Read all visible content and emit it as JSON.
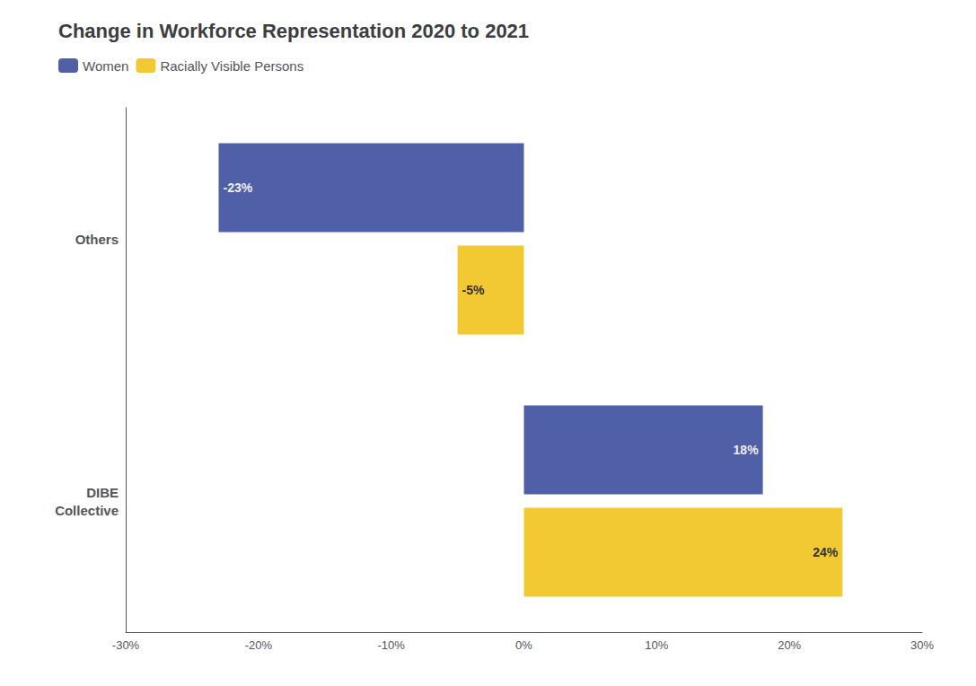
{
  "chart_data": {
    "type": "bar",
    "orientation": "horizontal",
    "title": "Change in Workforce Representation 2020 to 2021",
    "categories": [
      "DIBE\nCollective",
      "Others"
    ],
    "series": [
      {
        "name": "Women",
        "color": "#4f5fa8",
        "values": [
          18,
          -23
        ],
        "value_labels": [
          "18%",
          "-23%"
        ]
      },
      {
        "name": "Racially Visible Persons",
        "color": "#f2c933",
        "values": [
          24,
          -5
        ],
        "value_labels": [
          "24%",
          "-5%"
        ]
      }
    ],
    "xlim": [
      -30,
      30
    ],
    "xticks": [
      {
        "value": -30,
        "label": "-30%"
      },
      {
        "value": -20,
        "label": "-20%"
      },
      {
        "value": -10,
        "label": "-10%"
      },
      {
        "value": 0,
        "label": "0%"
      },
      {
        "value": 10,
        "label": "10%"
      },
      {
        "value": 20,
        "label": "20%"
      },
      {
        "value": 30,
        "label": "30%"
      }
    ],
    "data_labels": true,
    "grid": false,
    "legend": "upper left"
  }
}
